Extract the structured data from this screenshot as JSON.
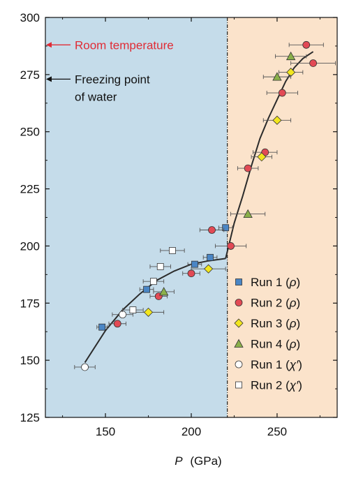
{
  "chart_data": {
    "type": "scatter",
    "title": "",
    "xlabel_symbol": "P",
    "xlabel_unit": "(GPa)",
    "ylabel": "",
    "xlim": [
      115,
      285
    ],
    "ylim": [
      125,
      300
    ],
    "xticks": [
      150,
      200,
      250
    ],
    "yticks": [
      125,
      150,
      175,
      200,
      225,
      250,
      275,
      300
    ],
    "grid": false,
    "legend_position": "bottom-right",
    "regions": [
      {
        "x_range": [
          115,
          221
        ],
        "color": "#c5dcea"
      },
      {
        "x_range": [
          221,
          285
        ],
        "color": "#fbe3cb"
      }
    ],
    "boundary_x": 221,
    "annotations": [
      {
        "text": "Room temperature",
        "y": 288,
        "color": "#e02b35"
      },
      {
        "text": "Freezing point",
        "text2": "of water",
        "y": 273,
        "color": "#111111"
      }
    ],
    "fit_curve": {
      "low": [
        [
          138,
          149
        ],
        [
          150,
          163
        ],
        [
          160,
          172
        ],
        [
          170,
          179
        ],
        [
          180,
          185
        ],
        [
          190,
          189
        ],
        [
          200,
          192
        ],
        [
          210,
          193.5
        ],
        [
          220,
          194.5
        ]
      ],
      "high": [
        [
          220,
          194.5
        ],
        [
          225,
          210
        ],
        [
          230,
          222
        ],
        [
          235,
          235
        ],
        [
          240,
          247
        ],
        [
          245,
          256
        ],
        [
          250,
          264
        ],
        [
          255,
          272
        ],
        [
          260,
          278
        ],
        [
          265,
          282
        ],
        [
          271,
          285
        ]
      ]
    },
    "series": [
      {
        "name": "Run 1 (ρ)",
        "marker": "square",
        "color": "#4a86c5",
        "points": [
          [
            148,
            164.5
          ],
          [
            174,
            181
          ],
          [
            202,
            192
          ],
          [
            211,
            195
          ],
          [
            220,
            208
          ]
        ],
        "xerr": [
          [
            3,
            3
          ],
          [
            4,
            4
          ],
          [
            4,
            4
          ],
          [
            4,
            4
          ],
          [
            4,
            4
          ]
        ]
      },
      {
        "name": "Run 2 (ρ)",
        "marker": "circle",
        "color": "#e24a55",
        "points": [
          [
            157,
            166
          ],
          [
            181,
            178
          ],
          [
            200,
            188
          ],
          [
            212,
            207
          ],
          [
            223,
            200
          ],
          [
            233,
            234
          ],
          [
            243,
            241
          ],
          [
            253,
            267
          ],
          [
            267,
            288
          ],
          [
            271,
            280
          ]
        ],
        "xerr": [
          [
            5,
            5
          ],
          [
            5,
            5
          ],
          [
            5,
            5
          ],
          [
            7,
            7
          ],
          [
            9,
            9
          ],
          [
            6,
            6
          ],
          [
            7,
            7
          ],
          [
            9,
            9
          ],
          [
            10,
            10
          ],
          [
            13,
            13
          ]
        ]
      },
      {
        "name": "Run 3 (ρ)",
        "marker": "diamond",
        "color": "#f2e61e",
        "points": [
          [
            175,
            171
          ],
          [
            210,
            190
          ],
          [
            241,
            239
          ],
          [
            250,
            255
          ],
          [
            258,
            276
          ]
        ],
        "xerr": [
          [
            9,
            9
          ],
          [
            10,
            10
          ],
          [
            6,
            6
          ],
          [
            8,
            8
          ],
          [
            7,
            7
          ]
        ]
      },
      {
        "name": "Run 4 (ρ)",
        "marker": "triangle",
        "color": "#8bb04a",
        "points": [
          [
            184,
            180
          ],
          [
            233,
            214
          ],
          [
            250,
            274
          ],
          [
            258,
            283
          ]
        ],
        "xerr": [
          [
            6,
            6
          ],
          [
            10,
            10
          ],
          [
            8,
            8
          ],
          [
            9,
            9
          ]
        ]
      },
      {
        "name": "Run 1 (χ′)",
        "marker": "circle",
        "color": "#ffffff",
        "points": [
          [
            138,
            147
          ],
          [
            160,
            170
          ]
        ],
        "xerr": [
          [
            6,
            6
          ],
          [
            6,
            6
          ]
        ]
      },
      {
        "name": "Run 2 (χ′)",
        "marker": "square",
        "color": "#ffffff",
        "points": [
          [
            166,
            172
          ],
          [
            178,
            184.5
          ],
          [
            182,
            191
          ],
          [
            189,
            198
          ]
        ],
        "xerr": [
          [
            6,
            6
          ],
          [
            6,
            6
          ],
          [
            6,
            6
          ],
          [
            7,
            7
          ]
        ]
      }
    ],
    "legend": [
      {
        "label": "Run 1",
        "symbol": "ρ"
      },
      {
        "label": "Run 2",
        "symbol": "ρ"
      },
      {
        "label": "Run 3",
        "symbol": "ρ"
      },
      {
        "label": "Run 4",
        "symbol": "ρ"
      },
      {
        "label": "Run 1",
        "symbol": "χ′"
      },
      {
        "label": "Run 2",
        "symbol": "χ′"
      }
    ]
  }
}
